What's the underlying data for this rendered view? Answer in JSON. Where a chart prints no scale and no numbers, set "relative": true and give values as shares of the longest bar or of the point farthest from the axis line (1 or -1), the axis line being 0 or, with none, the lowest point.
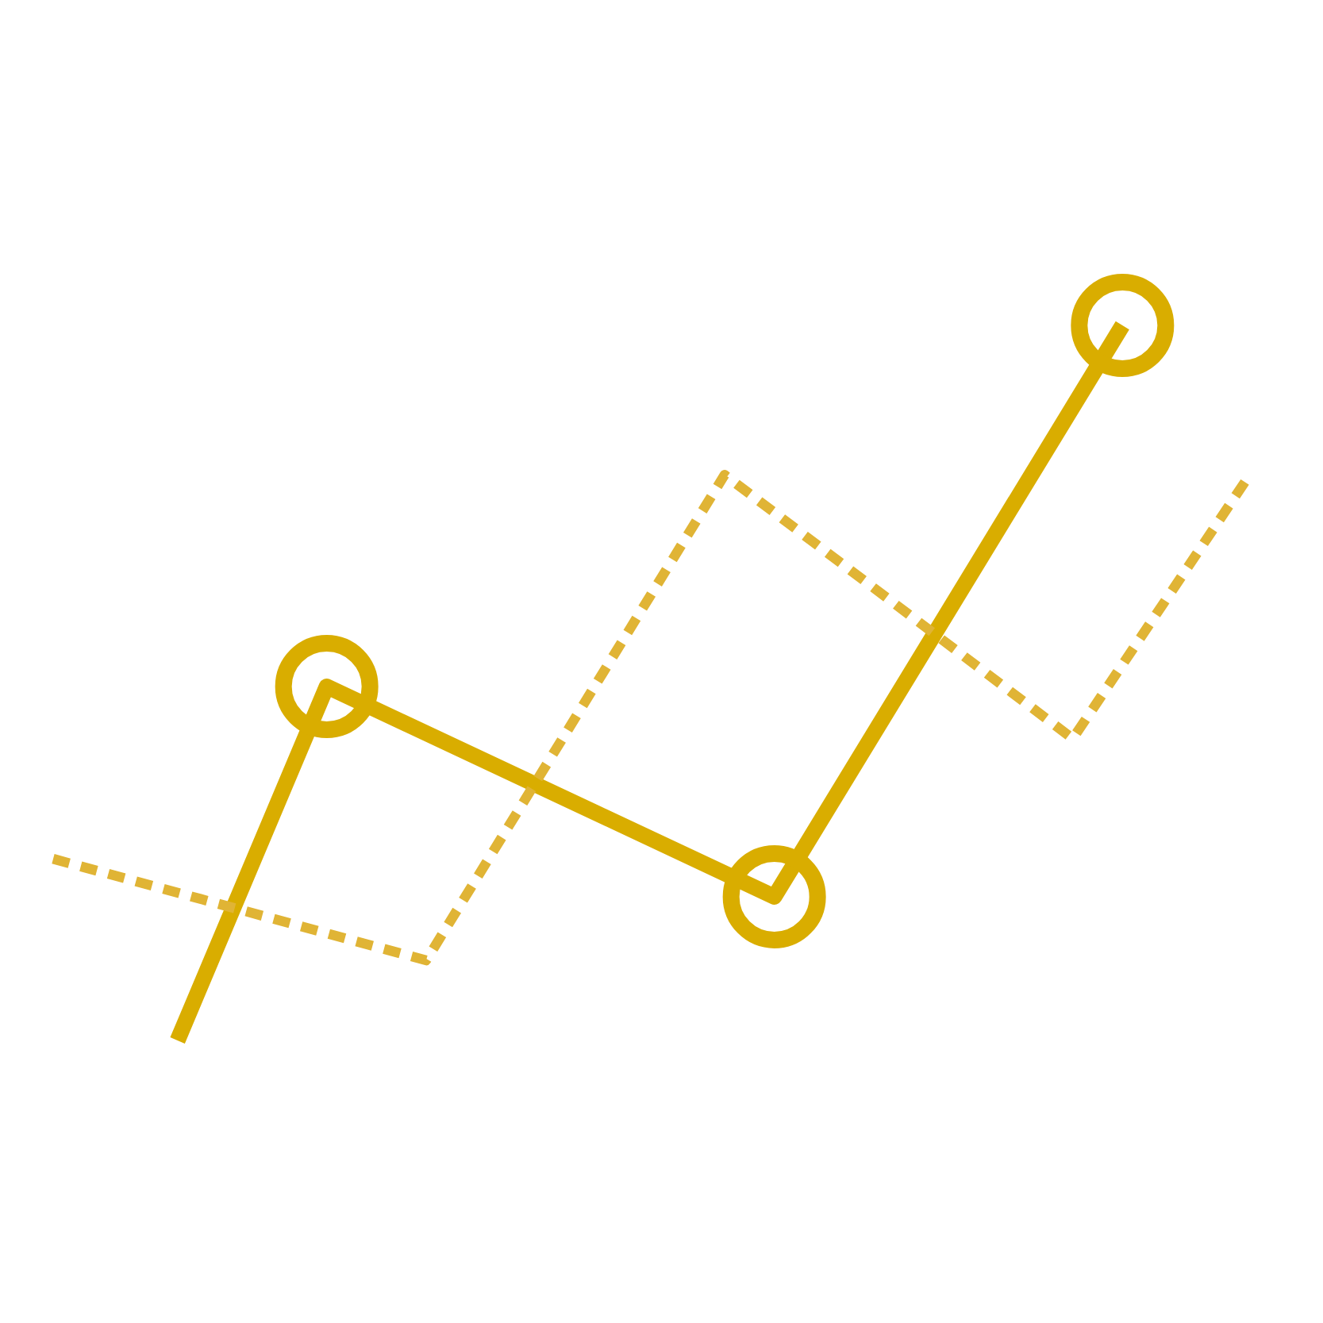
{
  "chart_data": {
    "type": "line",
    "relative": true,
    "categories": [
      null,
      null,
      null,
      null,
      null,
      null,
      null,
      null,
      null,
      null,
      null,
      null,
      null,
      null,
      null,
      null,
      null,
      null,
      null,
      null,
      null,
      null,
      null,
      null,
      null,
      null,
      null,
      null,
      null,
      null,
      null,
      null,
      null,
      null,
      null,
      null,
      null,
      null,
      null,
      null,
      null,
      null,
      null,
      null,
      null,
      null,
      null,
      null,
      null
    ],
    "series": [
      {
        "color": "#d9ad00",
        "line_style": "solid",
        "marker": [
          "none",
          "circle",
          "circle",
          "circle"
        ],
        "values": [
          null,
          null,
          null,
          null,
          null,
          0,
          null,
          null,
          null,
          null,
          null,
          0.495,
          null,
          null,
          null,
          null,
          null,
          null,
          null,
          null,
          null,
          null,
          null,
          null,
          null,
          null,
          null,
          null,
          null,
          0.201,
          null,
          null,
          null,
          null,
          null,
          null,
          null,
          null,
          null,
          null,
          null,
          null,
          null,
          1,
          null,
          null,
          null,
          null,
          null
        ]
      },
      {
        "color": "#e0b435",
        "line_style": "dashed",
        "marker": "none",
        "values": [
          0.254,
          null,
          null,
          null,
          null,
          null,
          null,
          null,
          null,
          null,
          null,
          null,
          null,
          null,
          null,
          0.112,
          null,
          null,
          null,
          null,
          null,
          null,
          null,
          null,
          null,
          null,
          null,
          0.791,
          null,
          null,
          null,
          null,
          null,
          null,
          null,
          null,
          null,
          null,
          null,
          null,
          null,
          0.422,
          null,
          null,
          null,
          null,
          null,
          null,
          0.785
        ]
      }
    ]
  }
}
